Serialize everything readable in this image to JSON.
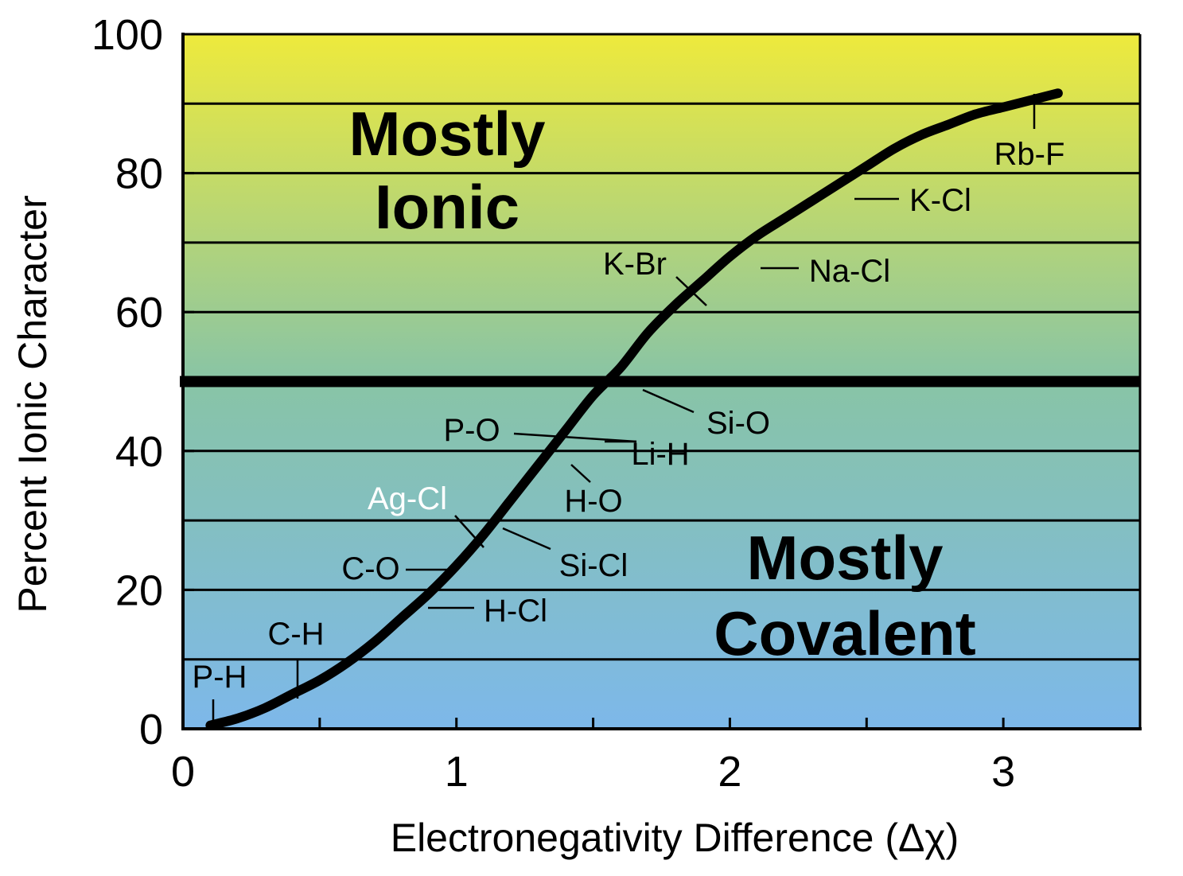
{
  "chart_data": {
    "type": "line",
    "title": "",
    "xlabel": "Electronegativity Difference (Δχ)",
    "ylabel": "Percent Ionic Character",
    "xlim": [
      0,
      3.5
    ],
    "ylim": [
      0,
      100
    ],
    "x_ticks": [
      "0",
      "1",
      "2",
      "3"
    ],
    "x_tick_values": [
      0,
      1,
      2,
      3
    ],
    "x_minor_ticks": [
      0.5,
      1.5,
      2.5,
      3.5
    ],
    "y_ticks": [
      "0",
      "20",
      "40",
      "60",
      "80",
      "100"
    ],
    "y_tick_values": [
      0,
      20,
      40,
      60,
      80,
      100
    ],
    "gridlines_y": [
      10,
      20,
      30,
      40,
      60,
      70,
      80,
      90,
      100
    ],
    "threshold_y": 50,
    "background_gradient": {
      "top": "#eeea3c",
      "middle": "#88c4a6",
      "bottom": "#7db8ea"
    },
    "regions": {
      "ionic": [
        "Mostly",
        "Ionic"
      ],
      "covalent": [
        "Mostly",
        "Covalent"
      ]
    },
    "series": [
      {
        "x": [
          0.1,
          0.2,
          0.3,
          0.4,
          0.5,
          0.6,
          0.7,
          0.8,
          0.9,
          1.0,
          1.1,
          1.2,
          1.3,
          1.4,
          1.5,
          1.6,
          1.7,
          1.8,
          1.9,
          2.0,
          2.1,
          2.2,
          2.3,
          2.4,
          2.5,
          2.6,
          2.7,
          2.8,
          2.9,
          3.0,
          3.1,
          3.2
        ],
        "y": [
          0.5,
          1.5,
          3,
          5,
          7,
          9.5,
          12.5,
          16,
          19.5,
          23.5,
          28,
          33,
          38,
          43,
          48,
          52,
          57,
          61,
          64.5,
          68,
          71,
          73.5,
          76,
          78.5,
          81,
          83.5,
          85.5,
          87,
          88.5,
          89.5,
          90.5,
          91.5
        ]
      }
    ],
    "annotations": [
      {
        "label": "P-H",
        "x": 0.11,
        "y": 1
      },
      {
        "label": "C-H",
        "x": 0.42,
        "y": 5
      },
      {
        "label": "C-O",
        "x": 0.95,
        "y": 23
      },
      {
        "label": "H-Cl",
        "x": 0.96,
        "y": 17.5
      },
      {
        "label": "Ag-Cl",
        "x": 1.08,
        "y": 26.5,
        "color": "#ffffff"
      },
      {
        "label": "Si-Cl",
        "x": 1.18,
        "y": 29
      },
      {
        "label": "P-O",
        "x": 1.45,
        "y": 42
      },
      {
        "label": "Li-H",
        "x": 1.45,
        "y": 40.5
      },
      {
        "label": "H-O",
        "x": 1.42,
        "y": 38
      },
      {
        "label": "Si-O",
        "x": 1.68,
        "y": 50
      },
      {
        "label": "K-Br",
        "x": 1.95,
        "y": 61
      },
      {
        "label": "Na-Cl",
        "x": 2.12,
        "y": 66.5
      },
      {
        "label": "K-Cl",
        "x": 2.48,
        "y": 76
      },
      {
        "label": "Rb-F",
        "x": 3.1,
        "y": 92
      }
    ]
  }
}
